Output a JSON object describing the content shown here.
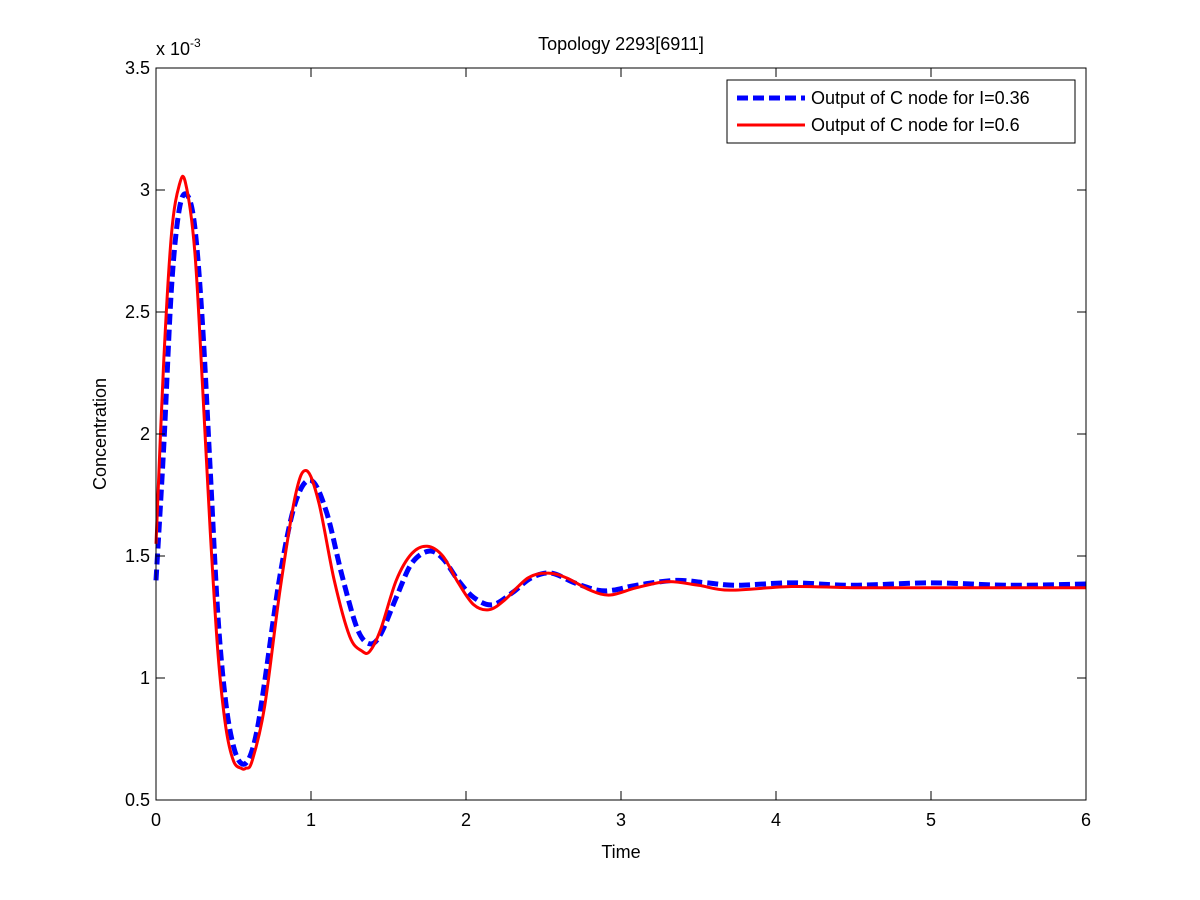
{
  "chart_data": {
    "type": "line",
    "title": "Topology 2293[6911]",
    "xlabel": "Time",
    "ylabel": "Concentration",
    "y_multiplier_label": {
      "base": "x 10",
      "exponent": "-3"
    },
    "xlim": [
      0,
      6
    ],
    "ylim": [
      0.5,
      3.5
    ],
    "x_ticks": [
      0,
      1,
      2,
      3,
      4,
      5,
      6
    ],
    "x_tick_labels": [
      "0",
      "1",
      "2",
      "3",
      "4",
      "5",
      "6"
    ],
    "y_ticks": [
      0.5,
      1,
      1.5,
      2,
      2.5,
      3,
      3.5
    ],
    "y_tick_labels": [
      "0.5",
      "1",
      "1.5",
      "2",
      "2.5",
      "3",
      "3.5"
    ],
    "grid": false,
    "legend_position": "top-right",
    "series": [
      {
        "name": "Output of C node for I=0.36",
        "color": "#0000ff",
        "style": "dashed",
        "x": [
          0,
          0.05,
          0.1,
          0.15,
          0.2,
          0.25,
          0.3,
          0.35,
          0.4,
          0.45,
          0.5,
          0.55,
          0.6,
          0.65,
          0.7,
          0.8,
          0.9,
          1.0,
          1.1,
          1.2,
          1.3,
          1.38,
          1.45,
          1.55,
          1.65,
          1.76,
          1.85,
          1.95,
          2.05,
          2.17,
          2.3,
          2.42,
          2.55,
          2.7,
          2.85,
          2.95,
          3.1,
          3.35,
          3.55,
          3.75,
          4.1,
          4.5,
          5.0,
          5.5,
          6.0
        ],
        "y": [
          1.4,
          1.95,
          2.6,
          2.92,
          2.98,
          2.85,
          2.45,
          1.85,
          1.25,
          0.9,
          0.72,
          0.65,
          0.67,
          0.78,
          0.98,
          1.42,
          1.72,
          1.81,
          1.68,
          1.42,
          1.2,
          1.14,
          1.18,
          1.33,
          1.47,
          1.52,
          1.49,
          1.4,
          1.33,
          1.3,
          1.35,
          1.41,
          1.43,
          1.39,
          1.36,
          1.36,
          1.38,
          1.4,
          1.39,
          1.38,
          1.39,
          1.38,
          1.39,
          1.38,
          1.385
        ]
      },
      {
        "name": "Output of C node for I=0.6",
        "color": "#ff0000",
        "style": "solid",
        "x": [
          0,
          0.05,
          0.1,
          0.15,
          0.19,
          0.25,
          0.3,
          0.35,
          0.4,
          0.45,
          0.5,
          0.55,
          0.58,
          0.62,
          0.7,
          0.8,
          0.9,
          0.97,
          1.05,
          1.15,
          1.25,
          1.33,
          1.38,
          1.45,
          1.55,
          1.65,
          1.75,
          1.85,
          1.95,
          2.05,
          2.15,
          2.25,
          2.4,
          2.53,
          2.65,
          2.8,
          2.93,
          3.1,
          3.3,
          3.5,
          3.7,
          4.1,
          4.5,
          5.0,
          5.5,
          6.0
        ],
        "y": [
          1.55,
          2.3,
          2.82,
          3.02,
          3.03,
          2.75,
          2.2,
          1.6,
          1.1,
          0.8,
          0.66,
          0.63,
          0.63,
          0.66,
          0.88,
          1.36,
          1.75,
          1.85,
          1.72,
          1.4,
          1.17,
          1.11,
          1.11,
          1.2,
          1.4,
          1.51,
          1.54,
          1.5,
          1.39,
          1.3,
          1.28,
          1.32,
          1.41,
          1.43,
          1.41,
          1.36,
          1.34,
          1.37,
          1.395,
          1.38,
          1.36,
          1.375,
          1.37,
          1.37,
          1.37,
          1.37
        ]
      }
    ]
  }
}
